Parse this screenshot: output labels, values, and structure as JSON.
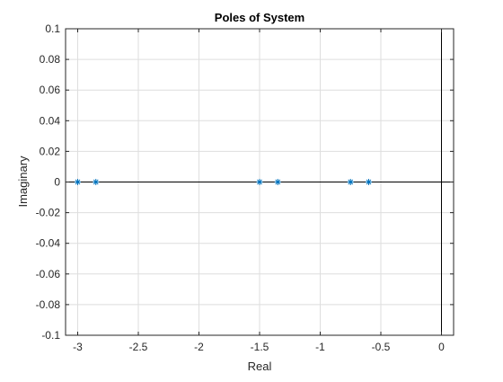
{
  "chart_data": {
    "type": "scatter",
    "title": "Poles of System",
    "xlabel": "Real",
    "ylabel": "Imaginary",
    "xlim": [
      -3.1,
      0.1
    ],
    "ylim": [
      -0.1,
      0.1
    ],
    "xticks": [
      -3,
      -2.5,
      -2,
      -1.5,
      -1,
      -0.5,
      0
    ],
    "xtick_labels": [
      "-3",
      "-2.5",
      "-2",
      "-1.5",
      "-1",
      "-0.5",
      "0"
    ],
    "yticks": [
      -0.1,
      -0.08,
      -0.06,
      -0.04,
      -0.02,
      0,
      0.02,
      0.04,
      0.06,
      0.08,
      0.1
    ],
    "ytick_labels": [
      "-0.1",
      "-0.08",
      "-0.06",
      "-0.04",
      "-0.02",
      "0",
      "0.02",
      "0.04",
      "0.06",
      "0.08",
      "0.1"
    ],
    "grid": true,
    "legend": false,
    "marker": "*",
    "marker_color": "#0072BD",
    "reference_lines": {
      "horizontal_y": 0,
      "vertical_x": 0,
      "color": "#000000"
    },
    "series": [
      {
        "x": [
          -3.0,
          -2.85,
          -1.5,
          -1.35,
          -0.75,
          -0.6
        ],
        "y": [
          0,
          0,
          0,
          0,
          0,
          0
        ]
      }
    ]
  }
}
